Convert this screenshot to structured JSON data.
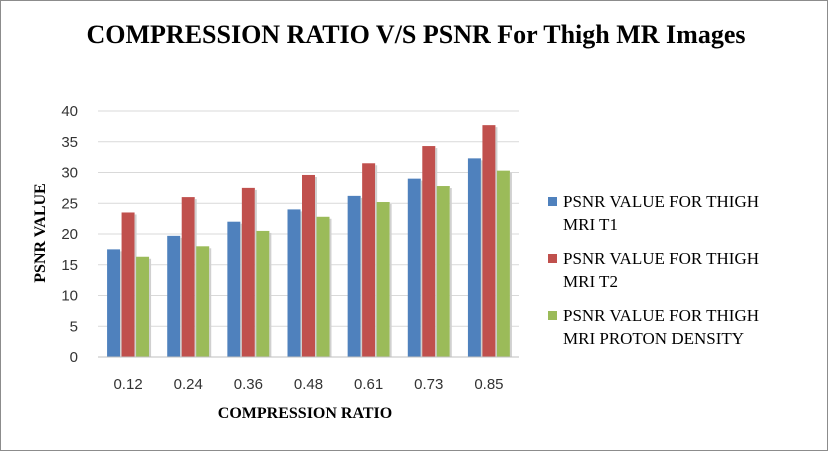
{
  "chart_data": {
    "type": "bar",
    "title": "COMPRESSION RATIO V/S PSNR For Thigh MR Images",
    "xlabel": "COMPRESSION RATIO",
    "ylabel": "PSNR VALUE",
    "ylim": [
      0,
      40
    ],
    "yticks": [
      "0",
      "5",
      "10",
      "15",
      "20",
      "25",
      "30",
      "35",
      "40"
    ],
    "grid": true,
    "legend_position": "right",
    "categories": [
      "0.12",
      "0.24",
      "0.36",
      "0.48",
      "0.61",
      "0.73",
      "0.85"
    ],
    "series": [
      {
        "name": "PSNR VALUE FOR THIGH MRI T1",
        "legend_lines": [
          "PSNR VALUE FOR THIGH",
          "MRI T1"
        ],
        "color": "#4f81bd",
        "values": [
          17.5,
          19.7,
          22.0,
          24.0,
          26.2,
          29.0,
          32.3
        ]
      },
      {
        "name": "PSNR VALUE FOR THIGH MRI T2",
        "legend_lines": [
          "PSNR VALUE FOR THIGH",
          "MRI T2"
        ],
        "color": "#c0504d",
        "values": [
          23.5,
          26.0,
          27.5,
          29.6,
          31.5,
          34.3,
          37.7
        ]
      },
      {
        "name": "PSNR VALUE FOR THIGH MRI PROTON DENSITY",
        "legend_lines": [
          "PSNR VALUE FOR THIGH",
          "MRI PROTON DENSITY"
        ],
        "color": "#9bbb59",
        "values": [
          16.3,
          18.0,
          20.5,
          22.8,
          25.2,
          27.8,
          30.3
        ]
      }
    ]
  }
}
